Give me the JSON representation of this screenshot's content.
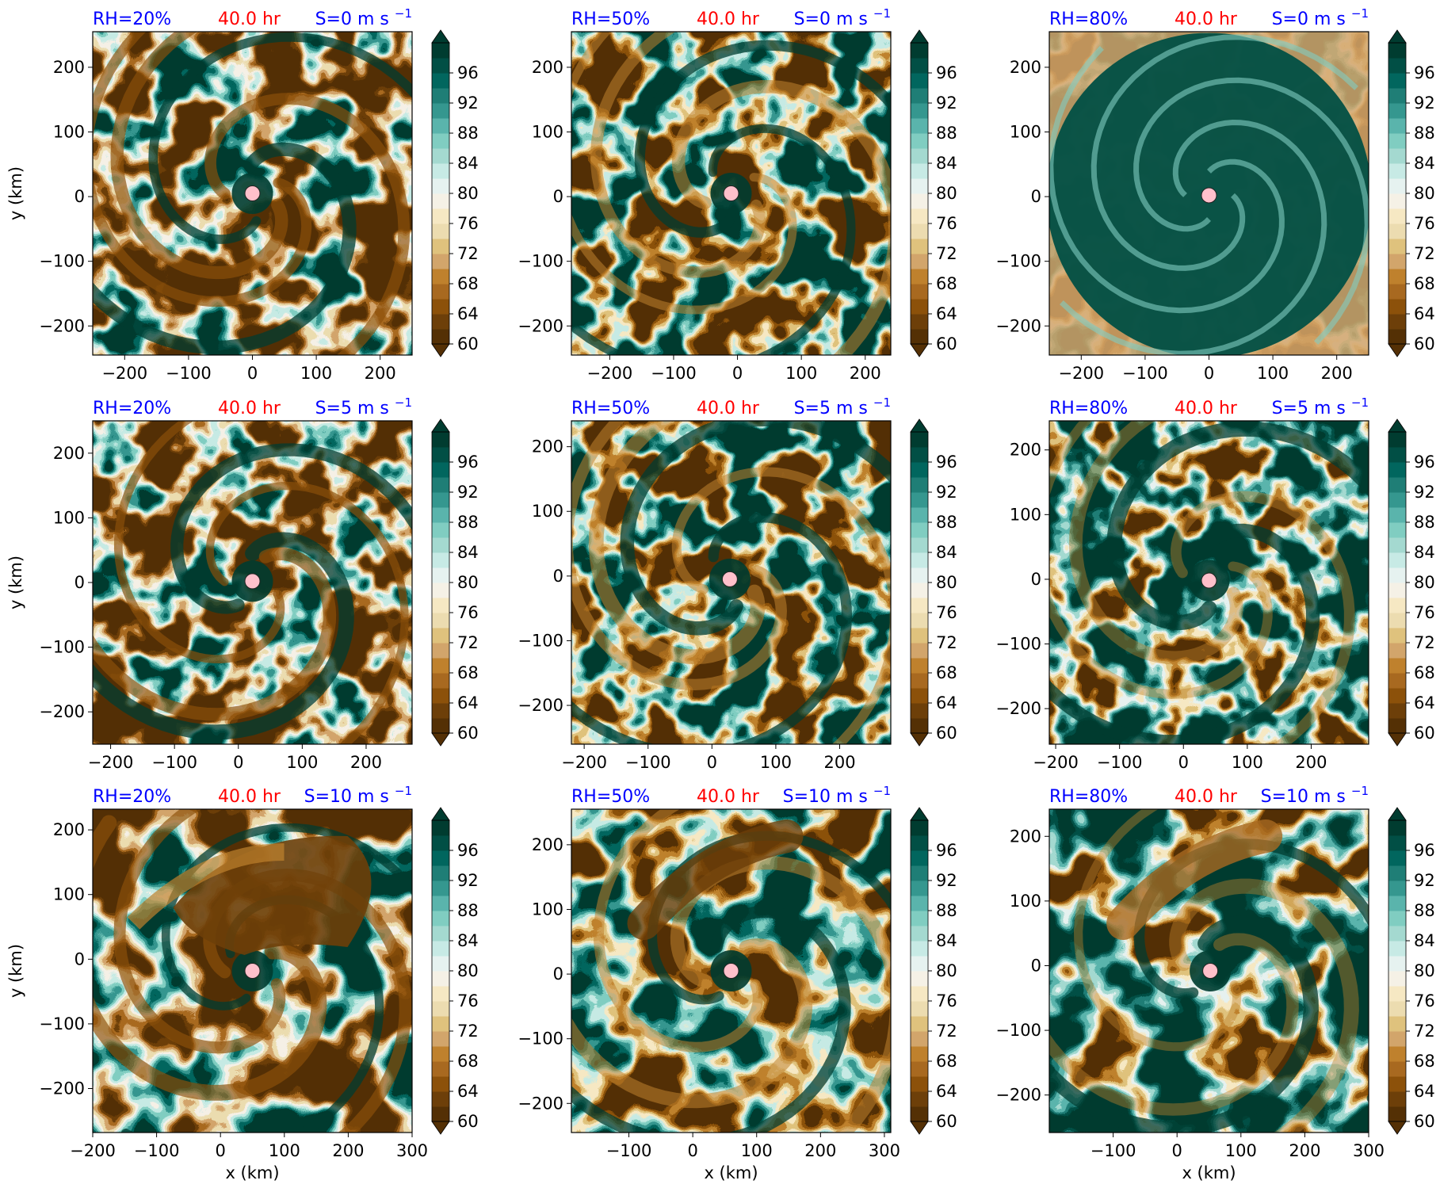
{
  "figure": {
    "time_label": "40.0 hr",
    "colorbar_ticks": [
      "60",
      "64",
      "68",
      "72",
      "76",
      "80",
      "84",
      "88",
      "92",
      "96"
    ],
    "colorbar_colors": [
      "#543005",
      "#6d3f09",
      "#8c510a",
      "#a86920",
      "#bf812d",
      "#d2a56b",
      "#dfc27d",
      "#ecdcb0",
      "#f6e8c3",
      "#f5f1e6",
      "#e6f2f0",
      "#c7eae5",
      "#a4d9d0",
      "#80cdc1",
      "#5ab4ac",
      "#35978f",
      "#1f7e76",
      "#01665e",
      "#014f45",
      "#003c30"
    ],
    "ylabel": "y (km)",
    "xlabel": "x (km)",
    "center_marker_color": "#ffc0cb"
  },
  "chart_data": [
    {
      "type": "heatmap",
      "rh": "RH=20%",
      "shear": "S=0 m s",
      "shear_exp": "−1",
      "xticks": [
        "−200",
        "−100",
        "0",
        "100",
        "200"
      ],
      "yticks": [
        "200",
        "100",
        "0",
        "−100",
        "−200"
      ],
      "xlim": [
        -250,
        250
      ],
      "ylim": [
        -245,
        255
      ],
      "center": [
        0,
        5
      ],
      "moisture": 0.2,
      "shear_value": 0,
      "dry_pattern": "patchy-spiral"
    },
    {
      "type": "heatmap",
      "rh": "RH=50%",
      "shear": "S=0 m s",
      "shear_exp": "−1",
      "xticks": [
        "−200",
        "−100",
        "0",
        "100",
        "200"
      ],
      "yticks": [
        "200",
        "100",
        "0",
        "−100",
        "−200"
      ],
      "xlim": [
        -260,
        240
      ],
      "ylim": [
        -245,
        255
      ],
      "center": [
        -10,
        5
      ],
      "moisture": 0.5,
      "shear_value": 0,
      "dry_pattern": "spiral"
    },
    {
      "type": "heatmap",
      "rh": "RH=80%",
      "shear": "S=0 m s",
      "shear_exp": "−1",
      "xticks": [
        "−200",
        "−100",
        "0",
        "100",
        "200"
      ],
      "yticks": [
        "200",
        "100",
        "0",
        "−100",
        "−200"
      ],
      "xlim": [
        -250,
        250
      ],
      "ylim": [
        -245,
        255
      ],
      "center": [
        0,
        2
      ],
      "moisture": 0.8,
      "shear_value": 0,
      "dry_pattern": "outer-ring"
    },
    {
      "type": "heatmap",
      "rh": "RH=20%",
      "shear": "S=5 m s",
      "shear_exp": "−1",
      "xticks": [
        "−200",
        "−100",
        "0",
        "100",
        "200"
      ],
      "yticks": [
        "200",
        "100",
        "0",
        "−100",
        "−200"
      ],
      "xlim": [
        -228,
        272
      ],
      "ylim": [
        -250,
        250
      ],
      "center": [
        22,
        2
      ],
      "moisture": 0.2,
      "shear_value": 5,
      "dry_pattern": "spiral"
    },
    {
      "type": "heatmap",
      "rh": "RH=50%",
      "shear": "S=5 m s",
      "shear_exp": "−1",
      "xticks": [
        "−200",
        "−100",
        "0",
        "100",
        "200"
      ],
      "yticks": [
        "200",
        "100",
        "0",
        "−100",
        "−200"
      ],
      "xlim": [
        -220,
        280
      ],
      "ylim": [
        -260,
        240
      ],
      "center": [
        28,
        -5
      ],
      "moisture": 0.5,
      "shear_value": 5,
      "dry_pattern": "spiral"
    },
    {
      "type": "heatmap",
      "rh": "RH=80%",
      "shear": "S=5 m s",
      "shear_exp": "−1",
      "xticks": [
        "−200",
        "−100",
        "0",
        "100",
        "200"
      ],
      "yticks": [
        "200",
        "100",
        "0",
        "−100",
        "−200"
      ],
      "xlim": [
        -210,
        290
      ],
      "ylim": [
        -255,
        245
      ],
      "center": [
        40,
        -2
      ],
      "moisture": 0.8,
      "shear_value": 5,
      "dry_pattern": "spiral"
    },
    {
      "type": "heatmap",
      "rh": "RH=20%",
      "shear": "S=10 m s",
      "shear_exp": "−1",
      "xticks": [
        "−200",
        "−100",
        "0",
        "100",
        "200",
        "300"
      ],
      "yticks": [
        "200",
        "100",
        "0",
        "−100",
        "−200"
      ],
      "xlim": [
        -200,
        300
      ],
      "ylim": [
        -268,
        232
      ],
      "center": [
        50,
        -18
      ],
      "moisture": 0.2,
      "shear_value": 10,
      "dry_pattern": "northeast-blob"
    },
    {
      "type": "heatmap",
      "rh": "RH=50%",
      "shear": "S=10 m s",
      "shear_exp": "−1",
      "xticks": [
        "−100",
        "0",
        "100",
        "200",
        "300"
      ],
      "yticks": [
        "200",
        "100",
        "0",
        "−100",
        "−200"
      ],
      "xlim": [
        -190,
        310
      ],
      "ylim": [
        -245,
        255
      ],
      "center": [
        60,
        5
      ],
      "moisture": 0.5,
      "shear_value": 10,
      "dry_pattern": "north-band"
    },
    {
      "type": "heatmap",
      "rh": "RH=80%",
      "shear": "S=10 m s",
      "shear_exp": "−1",
      "xticks": [
        "−100",
        "0",
        "100",
        "200",
        "300"
      ],
      "yticks": [
        "200",
        "100",
        "0",
        "−100",
        "−200"
      ],
      "xlim": [
        -200,
        300
      ],
      "ylim": [
        -258,
        242
      ],
      "center": [
        52,
        -8
      ],
      "moisture": 0.8,
      "shear_value": 10,
      "dry_pattern": "north-band"
    }
  ]
}
